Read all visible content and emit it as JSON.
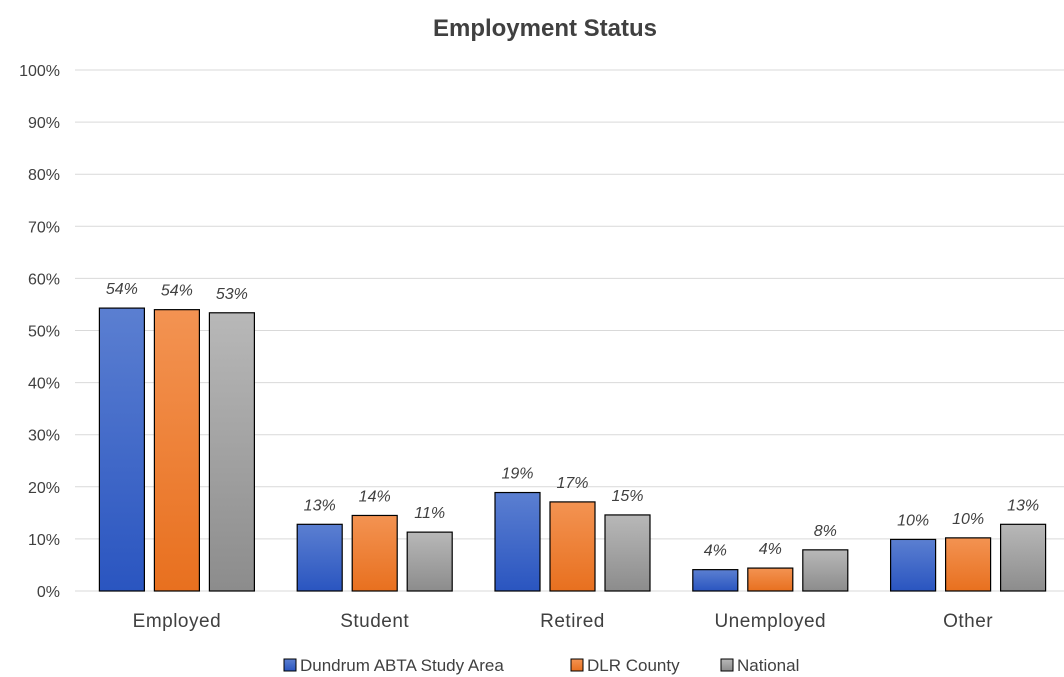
{
  "chart_data": {
    "type": "bar",
    "title": "Employment Status",
    "categories": [
      "Employed",
      "Student",
      "Retired",
      "Unemployed",
      "Other"
    ],
    "series": [
      {
        "name": "Dundrum ABTA Study Area",
        "values": [
          54.3,
          12.8,
          18.9,
          4.1,
          9.9
        ],
        "labels": [
          "54%",
          "13%",
          "19%",
          "4%",
          "10%"
        ],
        "color_top": "#5b7fd1",
        "color_bottom": "#2a55c0"
      },
      {
        "name": "DLR County",
        "values": [
          54.0,
          14.5,
          17.1,
          4.4,
          10.2
        ],
        "labels": [
          "54%",
          "14%",
          "17%",
          "4%",
          "10%"
        ],
        "color_top": "#f39352",
        "color_bottom": "#e8701f"
      },
      {
        "name": "National",
        "values": [
          53.4,
          11.3,
          14.6,
          7.9,
          12.8
        ],
        "labels": [
          "53%",
          "11%",
          "15%",
          "8%",
          "13%"
        ],
        "color_top": "#b8b8b8",
        "color_bottom": "#8c8c8c"
      }
    ],
    "yticks": [
      "0%",
      "10%",
      "20%",
      "30%",
      "40%",
      "50%",
      "60%",
      "70%",
      "80%",
      "90%",
      "100%"
    ],
    "ylim": [
      0,
      100
    ],
    "grid": true,
    "legend": "bottom"
  }
}
